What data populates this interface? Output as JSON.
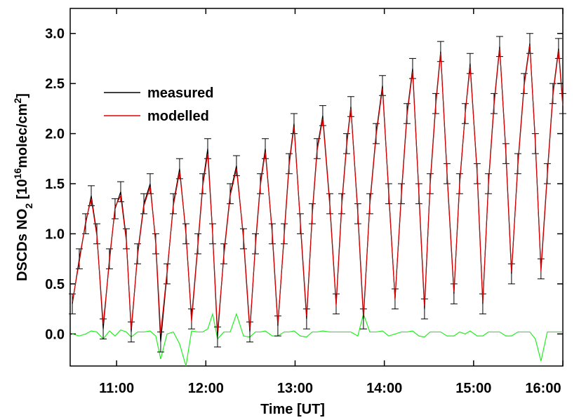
{
  "chart_data": {
    "type": "line",
    "xlabel": "Time [UT]",
    "ylabel": [
      "DSCDs NO",
      "2",
      " [10",
      "16",
      "molec/cm",
      "2",
      "]"
    ],
    "xlim": [
      10.48,
      16.0
    ],
    "ylim": [
      -0.32,
      3.25
    ],
    "xticks": [
      {
        "value": 11,
        "label": "11:00"
      },
      {
        "value": 12,
        "label": "12:00"
      },
      {
        "value": 13,
        "label": "13:00"
      },
      {
        "value": 14,
        "label": "14:00"
      },
      {
        "value": 15,
        "label": "15:00"
      },
      {
        "value": 16,
        "label": "16:00"
      }
    ],
    "yticks": [
      {
        "value": 0,
        "label": "0.0"
      },
      {
        "value": 0.5,
        "label": "0.5"
      },
      {
        "value": 1,
        "label": "1.0"
      },
      {
        "value": 1.5,
        "label": "1.5"
      },
      {
        "value": 2,
        "label": "2.0"
      },
      {
        "value": 2.5,
        "label": "2.5"
      },
      {
        "value": 3,
        "label": "3.0"
      }
    ],
    "x": [
      10.504,
      10.582,
      10.653,
      10.716,
      10.779,
      10.85,
      10.92,
      10.983,
      11.046,
      11.109,
      11.164,
      11.235,
      11.306,
      11.376,
      11.439,
      11.494,
      11.565,
      11.636,
      11.706,
      11.777,
      11.84,
      11.911,
      11.966,
      12.021,
      12.076,
      12.131,
      12.202,
      12.273,
      12.343,
      12.422,
      12.493,
      12.556,
      12.611,
      12.666,
      12.744,
      12.807,
      12.878,
      12.933,
      12.988,
      13.059,
      13.129,
      13.192,
      13.247,
      13.31,
      13.389,
      13.46,
      13.523,
      13.578,
      13.625,
      13.703,
      13.766,
      13.837,
      13.908,
      13.979,
      14.049,
      14.12,
      14.191,
      14.254,
      14.317,
      14.387,
      14.45,
      14.513,
      14.576,
      14.631,
      14.702,
      14.78,
      14.843,
      14.906,
      14.961,
      15.04,
      15.103,
      15.166,
      15.229,
      15.292,
      15.362,
      15.425,
      15.496,
      15.567,
      15.63,
      15.692,
      15.755,
      15.826,
      15.889,
      15.952,
      15.999
    ],
    "series": [
      {
        "name": "measured",
        "color": "#000000",
        "error": 0.1,
        "values": [
          0.3,
          0.75,
          1.1,
          1.38,
          1.0,
          0.05,
          0.75,
          1.25,
          1.42,
          0.95,
          0.02,
          0.8,
          1.3,
          1.5,
          0.9,
          -0.08,
          0.6,
          1.3,
          1.65,
          1.0,
          0.15,
          0.9,
          1.5,
          1.85,
          1.0,
          -0.03,
          0.8,
          1.4,
          1.68,
          0.95,
          0.02,
          0.9,
          1.5,
          1.85,
          1.0,
          0.08,
          1.0,
          1.7,
          2.1,
          1.1,
          0.15,
          1.2,
          1.85,
          2.18,
          1.3,
          0.3,
          1.3,
          1.9,
          2.27,
          1.2,
          0.15,
          1.3,
          2.0,
          2.48,
          1.4,
          0.35,
          1.4,
          2.2,
          2.65,
          1.4,
          0.25,
          1.5,
          2.3,
          2.82,
          1.6,
          0.4,
          1.5,
          2.2,
          2.7,
          1.6,
          0.3,
          1.5,
          2.3,
          2.87,
          1.8,
          0.6,
          1.7,
          2.5,
          2.9,
          1.9,
          0.65,
          1.6,
          2.4,
          2.85,
          2.3
        ]
      },
      {
        "name": "modelled",
        "color": "#dd0000",
        "values": [
          0.32,
          0.72,
          1.12,
          1.35,
          0.98,
          0.1,
          0.72,
          1.27,
          1.38,
          0.93,
          0.05,
          0.78,
          1.28,
          1.47,
          0.92,
          0.0,
          0.62,
          1.28,
          1.62,
          1.02,
          0.12,
          0.88,
          1.48,
          1.8,
          1.0,
          0.02,
          0.78,
          1.38,
          1.65,
          0.97,
          0.05,
          0.88,
          1.48,
          1.82,
          1.02,
          0.1,
          0.98,
          1.68,
          2.07,
          1.12,
          0.18,
          1.18,
          1.83,
          2.15,
          1.28,
          0.28,
          1.28,
          1.88,
          2.25,
          1.22,
          0.18,
          1.28,
          1.98,
          2.45,
          1.42,
          0.35,
          1.38,
          2.18,
          2.62,
          1.42,
          0.28,
          1.48,
          2.28,
          2.8,
          1.62,
          0.42,
          1.48,
          2.2,
          2.67,
          1.62,
          0.32,
          1.48,
          2.28,
          2.85,
          1.82,
          0.62,
          1.68,
          2.48,
          2.88,
          1.92,
          0.62,
          1.58,
          2.38,
          2.83,
          2.28
        ]
      },
      {
        "color": "#22ee22",
        "values": [
          0.0,
          -0.02,
          0.0,
          0.03,
          0.02,
          -0.05,
          0.03,
          -0.02,
          0.04,
          0.02,
          -0.03,
          0.02,
          0.02,
          0.03,
          -0.02,
          -0.25,
          0.0,
          0.02,
          -0.1,
          -0.32,
          0.03,
          0.02,
          0.02,
          0.05,
          0.2,
          -0.05,
          0.02,
          0.02,
          0.2,
          -0.02,
          -0.03,
          0.02,
          0.02,
          0.03,
          -0.02,
          -0.02,
          0.02,
          0.02,
          0.03,
          -0.02,
          -0.03,
          0.02,
          0.02,
          0.03,
          0.02,
          0.02,
          0.02,
          0.02,
          0.02,
          -0.02,
          0.2,
          0.02,
          0.02,
          0.03,
          -0.02,
          0.0,
          0.02,
          0.02,
          0.03,
          -0.02,
          -0.03,
          0.02,
          0.02,
          0.02,
          -0.02,
          -0.02,
          0.02,
          0.0,
          0.03,
          -0.02,
          -0.02,
          0.02,
          0.02,
          0.02,
          -0.02,
          -0.02,
          0.02,
          0.02,
          0.02,
          -0.05,
          -0.27,
          0.02,
          0.02,
          0.02,
          0.02
        ]
      }
    ]
  }
}
